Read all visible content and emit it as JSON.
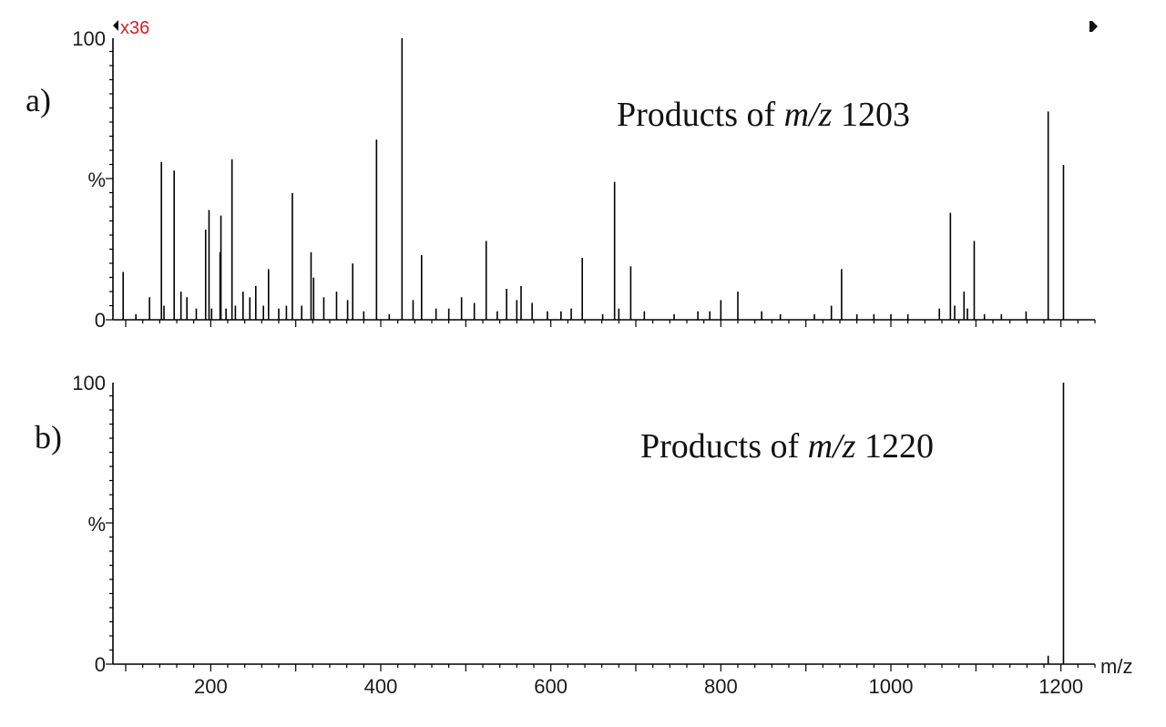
{
  "chart_data": [
    {
      "type": "bar",
      "panel_label": "a)",
      "title": {
        "prefix": "Products of ",
        "italic": "m/z",
        "suffix": " 1203"
      },
      "scale_marker": "x36",
      "xlim": [
        85,
        1240
      ],
      "ylim": [
        0,
        100
      ],
      "x_ticks": [
        200,
        400,
        600,
        800,
        1000,
        1200
      ],
      "show_x_tick_labels": false,
      "y_tick_labels": [
        "100",
        "%",
        "0"
      ],
      "peaks": [
        [
          97,
          17
        ],
        [
          112,
          2
        ],
        [
          128,
          8
        ],
        [
          142,
          56
        ],
        [
          145,
          5
        ],
        [
          157,
          53
        ],
        [
          165,
          10
        ],
        [
          172,
          8
        ],
        [
          183,
          4
        ],
        [
          194,
          32
        ],
        [
          198,
          39
        ],
        [
          201,
          4
        ],
        [
          211,
          24
        ],
        [
          212,
          37
        ],
        [
          218,
          4
        ],
        [
          225,
          57
        ],
        [
          229,
          5
        ],
        [
          238,
          10
        ],
        [
          246,
          8
        ],
        [
          253,
          12
        ],
        [
          262,
          5
        ],
        [
          268,
          18
        ],
        [
          280,
          4
        ],
        [
          289,
          5
        ],
        [
          296,
          45
        ],
        [
          307,
          5
        ],
        [
          318,
          24
        ],
        [
          321,
          15
        ],
        [
          333,
          8
        ],
        [
          348,
          10
        ],
        [
          361,
          7
        ],
        [
          367,
          20
        ],
        [
          380,
          3
        ],
        [
          395,
          64
        ],
        [
          410,
          2
        ],
        [
          425,
          100
        ],
        [
          438,
          7
        ],
        [
          448,
          23
        ],
        [
          465,
          4
        ],
        [
          480,
          4
        ],
        [
          495,
          8
        ],
        [
          510,
          6
        ],
        [
          524,
          28
        ],
        [
          537,
          3
        ],
        [
          548,
          11
        ],
        [
          560,
          7
        ],
        [
          565,
          12
        ],
        [
          578,
          6
        ],
        [
          596,
          3
        ],
        [
          612,
          3
        ],
        [
          624,
          4
        ],
        [
          637,
          22
        ],
        [
          661,
          2
        ],
        [
          675,
          49
        ],
        [
          680,
          4
        ],
        [
          694,
          19
        ],
        [
          710,
          3
        ],
        [
          745,
          2
        ],
        [
          773,
          3
        ],
        [
          787,
          3
        ],
        [
          800,
          7
        ],
        [
          820,
          10
        ],
        [
          848,
          3
        ],
        [
          870,
          2
        ],
        [
          910,
          2
        ],
        [
          930,
          5
        ],
        [
          942,
          18
        ],
        [
          960,
          2
        ],
        [
          980,
          2
        ],
        [
          1000,
          2
        ],
        [
          1020,
          2
        ],
        [
          1057,
          4
        ],
        [
          1070,
          38
        ],
        [
          1075,
          5
        ],
        [
          1086,
          10
        ],
        [
          1090,
          4
        ],
        [
          1098,
          28
        ],
        [
          1110,
          2
        ],
        [
          1130,
          2
        ],
        [
          1159,
          3
        ],
        [
          1185,
          74
        ],
        [
          1203,
          55
        ]
      ]
    },
    {
      "type": "bar",
      "panel_label": "b)",
      "title": {
        "prefix": "Products of ",
        "italic": "m/z",
        "suffix": " 1220"
      },
      "xlim": [
        85,
        1240
      ],
      "ylim": [
        0,
        100
      ],
      "x_ticks": [
        200,
        400,
        600,
        800,
        1000,
        1200
      ],
      "x_tick_labels": [
        "200",
        "400",
        "600",
        "800",
        "1000",
        "1200"
      ],
      "xlabel": "m/z",
      "y_tick_labels": [
        "100",
        "%",
        "0"
      ],
      "peaks": [
        [
          1185,
          3
        ],
        [
          1203,
          100
        ]
      ]
    }
  ]
}
